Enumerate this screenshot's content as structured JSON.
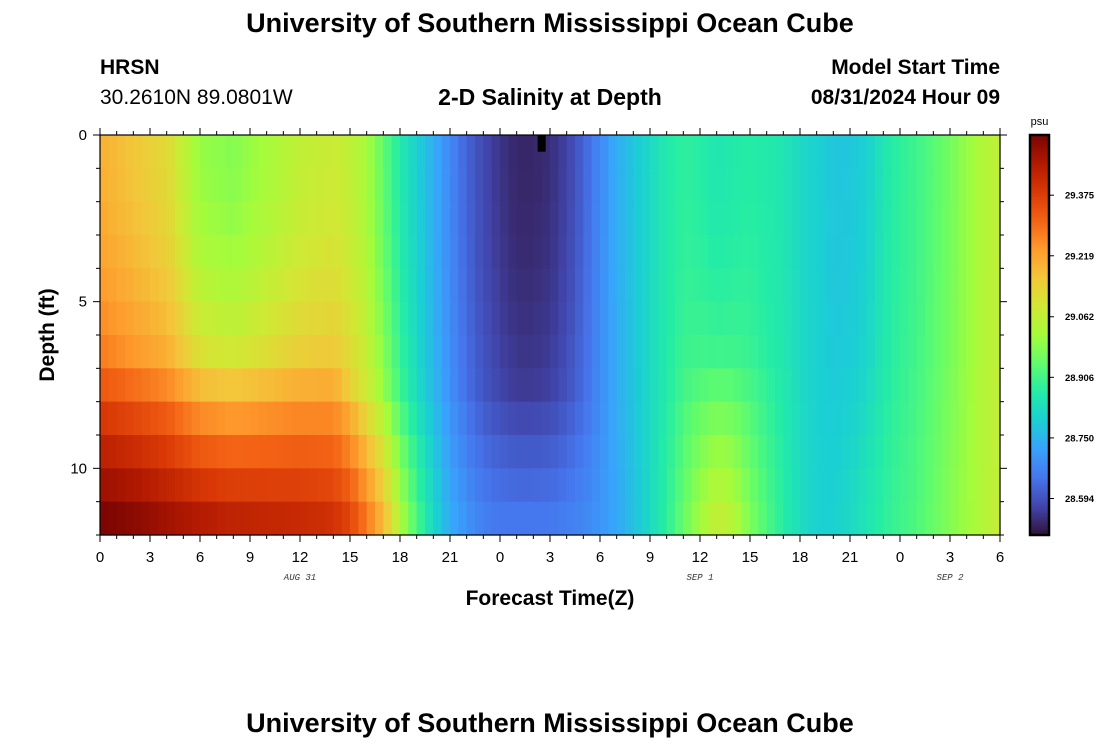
{
  "header": {
    "title": "University of Southern Mississippi Ocean Cube",
    "station": "HRSN",
    "coords": "30.2610N  89.0801W",
    "plot_title": "2-D Salinity at Depth",
    "model_start_label": "Model Start Time",
    "model_start_time": "08/31/2024 Hour 09"
  },
  "footer": {
    "title": "University of Southern Mississippi Ocean Cube"
  },
  "chart_data": {
    "type": "heatmap",
    "title": "2-D Salinity at Depth",
    "xlabel": "Forecast Time(Z)",
    "ylabel": "Depth (ft)",
    "x_ticks": [
      "0",
      "3",
      "6",
      "9",
      "12",
      "15",
      "18",
      "21",
      "0",
      "3",
      "6",
      "9",
      "12",
      "15",
      "18",
      "21",
      "0",
      "3",
      "6"
    ],
    "x_range_hours": [
      0,
      54
    ],
    "date_labels": [
      {
        "text": "AUG 31",
        "hour": 12
      },
      {
        "text": "SEP 1",
        "hour": 36
      },
      {
        "text": "SEP 2",
        "hour": 51
      }
    ],
    "y_ticks": [
      "0",
      "5",
      "10"
    ],
    "y_range_ft": [
      0,
      12
    ],
    "y_inverted": true,
    "colorbar": {
      "units": "psu",
      "min": 28.5,
      "max": 29.53,
      "ticks": [
        "29.375",
        "29.219",
        "29.062",
        "28.906",
        "28.750",
        "28.594"
      ],
      "colors": [
        "#30123b",
        "#4145ab",
        "#4675ed",
        "#39a2fc",
        "#1bcfd4",
        "#24eca6",
        "#61fc6c",
        "#a4fc3b",
        "#d1e834",
        "#f3c63a",
        "#fe9b2d",
        "#f36315",
        "#d93806",
        "#b11901",
        "#7a0403"
      ]
    },
    "salinity_profile": {
      "hours": [
        0,
        2,
        4,
        6,
        8,
        10,
        12,
        14,
        15,
        16,
        17,
        18,
        19,
        20,
        21,
        22,
        23,
        24,
        25,
        26,
        27,
        28,
        29,
        30,
        31,
        32,
        33,
        34,
        35,
        36,
        37,
        38,
        39,
        40,
        41,
        42,
        43,
        44,
        45,
        46,
        47,
        48,
        49,
        50,
        51,
        52,
        53,
        54
      ],
      "surface_psu": [
        29.2,
        29.16,
        29.12,
        29.0,
        28.98,
        29.02,
        29.06,
        29.08,
        29.06,
        29.02,
        28.94,
        28.86,
        28.8,
        28.74,
        28.68,
        28.62,
        28.58,
        28.55,
        28.53,
        28.53,
        28.54,
        28.57,
        28.62,
        28.68,
        28.74,
        28.78,
        28.82,
        28.86,
        28.88,
        28.87,
        28.85,
        28.86,
        28.87,
        28.86,
        28.85,
        28.82,
        28.8,
        28.78,
        28.78,
        28.8,
        28.85,
        28.88,
        28.9,
        28.93,
        28.96,
        29.0,
        29.04,
        29.06
      ],
      "bottom_psu": [
        29.55,
        29.53,
        29.5,
        29.48,
        29.46,
        29.45,
        29.44,
        29.42,
        29.38,
        29.3,
        29.2,
        29.05,
        28.92,
        28.82,
        28.74,
        28.7,
        28.67,
        28.66,
        28.66,
        28.66,
        28.66,
        28.67,
        28.68,
        28.7,
        28.73,
        28.77,
        28.82,
        28.88,
        28.95,
        29.02,
        29.08,
        29.05,
        28.98,
        28.92,
        28.87,
        28.83,
        28.8,
        28.8,
        28.82,
        28.85,
        28.88,
        28.9,
        28.92,
        28.95,
        28.98,
        29.01,
        29.04,
        29.07
      ],
      "thermocline_ft": [
        7.0,
        7.0,
        7.0,
        7.0,
        7.0,
        7.0,
        7.0,
        7.0,
        7.5,
        8.0,
        8.0,
        8.0,
        8.0,
        8.0,
        8.0,
        8.0,
        8.0,
        8.0,
        8.0,
        8.0,
        8.0,
        8.0,
        8.0,
        8.0,
        8.0,
        8.0,
        8.0,
        7.5,
        7.0,
        7.0,
        7.0,
        7.0,
        7.0,
        7.0,
        7.0,
        7.0,
        7.0,
        7.0,
        7.0,
        7.0,
        7.0,
        7.0,
        7.0,
        7.0,
        7.0,
        7.0,
        7.0,
        7.0
      ]
    },
    "marker": {
      "hour": 26.5,
      "depth_ft": 0.5
    }
  }
}
